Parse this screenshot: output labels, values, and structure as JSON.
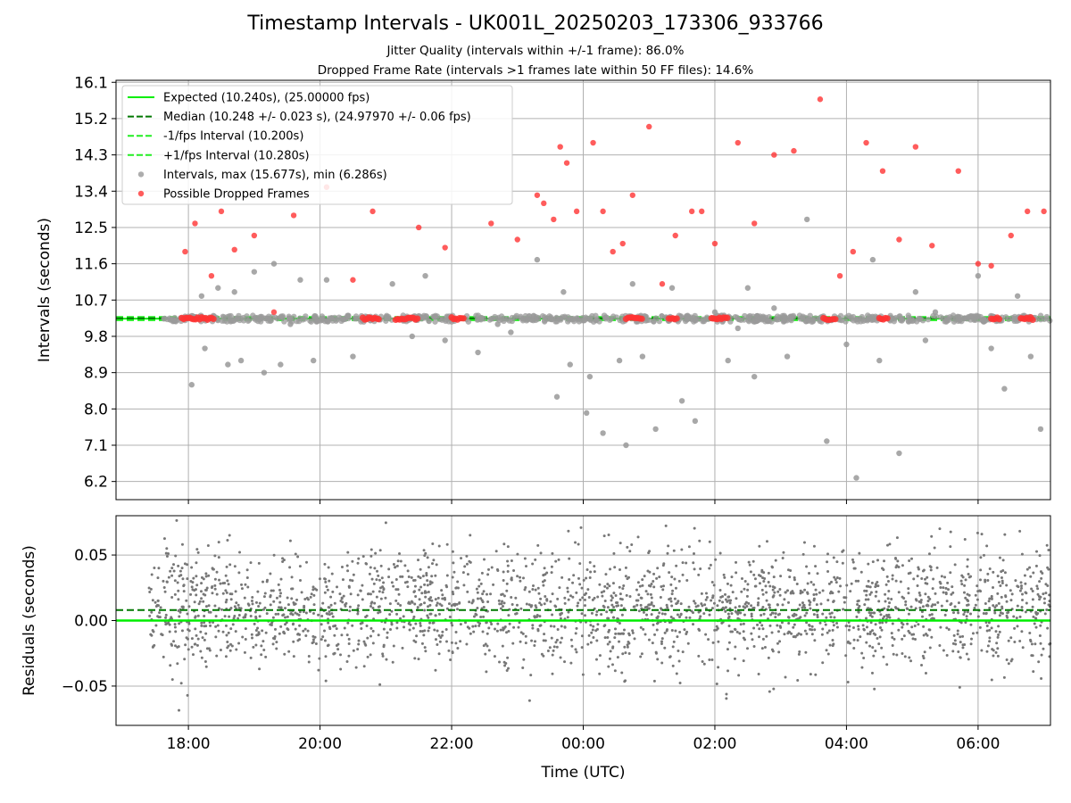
{
  "title": "Timestamp Intervals - UK001L_20250203_173306_933766",
  "subtitle1": "Jitter Quality (intervals within +/-1 frame): 86.0%",
  "subtitle2": "Dropped Frame Rate (intervals >1 frames late within 50 FF files): 14.6%",
  "colors": {
    "expected": "#00ee00",
    "median": "#007700",
    "fps_band": "#22ee22",
    "intervals": "#999999",
    "dropped": "#ff3333",
    "residuals": "#777777",
    "grid": "#b0b0b0"
  },
  "chart_data": [
    {
      "type": "scatter",
      "id": "intervals",
      "ylabel": "Intervals (seconds)",
      "ylim": [
        5.75,
        16.15
      ],
      "yticks": [
        "6.2",
        "7.1",
        "8.0",
        "8.9",
        "9.8",
        "10.7",
        "11.6",
        "12.5",
        "13.4",
        "14.3",
        "15.2",
        "16.1"
      ],
      "xlim": [
        -7.1,
        7.1
      ],
      "xticks": [
        "18:00",
        "20:00",
        "22:00",
        "00:00",
        "02:00",
        "04:00",
        "06:00"
      ],
      "grid": true,
      "legend_position": "top-left",
      "reference_lines": {
        "expected": 10.24,
        "median": 10.248,
        "minus_fps": 10.2,
        "plus_fps": 10.28
      },
      "legend": [
        "Expected (10.240s), (25.00000 fps)",
        "Median (10.248 +/- 0.023 s), (24.97970 +/- 0.06 fps)",
        "-1/fps Interval (10.200s)",
        "+1/fps Interval (10.280s)",
        "Intervals, max (15.677s), min (6.286s)",
        "Possible Dropped Frames"
      ],
      "series": [
        {
          "name": "Intervals, max (15.677s), min (6.286s)",
          "x": [
            -5.95,
            -5.8,
            -5.75,
            -5.55,
            -5.4,
            -5.3,
            -5.2,
            -5.0,
            -4.85,
            -4.7,
            -4.6,
            -4.45,
            -4.3,
            -4.1,
            -3.9,
            -3.5,
            -2.9,
            -2.6,
            -2.4,
            -2.1,
            -1.6,
            -1.3,
            -1.1,
            -0.7,
            -0.4,
            -0.3,
            -0.2,
            0.05,
            0.1,
            0.3,
            0.55,
            0.65,
            0.75,
            0.9,
            1.1,
            1.35,
            1.5,
            1.7,
            2.0,
            2.2,
            2.35,
            2.5,
            2.6,
            2.9,
            3.1,
            3.4,
            3.7,
            4.0,
            4.15,
            4.4,
            4.5,
            4.8,
            5.05,
            5.2,
            5.35,
            6.0,
            6.2,
            6.4,
            6.6,
            6.8,
            6.95
          ],
          "y": [
            8.6,
            10.8,
            9.5,
            11.0,
            9.1,
            10.9,
            9.2,
            11.4,
            8.9,
            11.6,
            9.1,
            10.1,
            11.2,
            9.2,
            11.2,
            9.3,
            11.1,
            9.8,
            11.3,
            9.7,
            9.4,
            10.1,
            9.9,
            11.7,
            8.3,
            10.9,
            9.1,
            7.9,
            8.8,
            7.4,
            9.2,
            7.1,
            11.1,
            9.3,
            7.5,
            11.0,
            8.2,
            7.7,
            10.4,
            9.2,
            10.0,
            11.0,
            8.8,
            10.5,
            9.3,
            12.7,
            7.2,
            9.6,
            6.29,
            11.7,
            9.2,
            6.9,
            10.9,
            9.7,
            10.4,
            11.3,
            9.5,
            8.5,
            10.8,
            9.3,
            7.5
          ]
        },
        {
          "name": "Possible Dropped Frames",
          "x": [
            -6.05,
            -5.9,
            -5.65,
            -5.5,
            -5.3,
            -5.0,
            -4.7,
            -4.4,
            -3.9,
            -3.5,
            -3.2,
            -2.5,
            -2.1,
            -1.4,
            -1.0,
            -0.7,
            -0.6,
            -0.45,
            -0.35,
            -0.25,
            -0.1,
            0.15,
            0.3,
            0.45,
            0.6,
            0.75,
            1.0,
            1.2,
            1.4,
            1.65,
            1.8,
            2.0,
            2.35,
            2.6,
            2.9,
            3.2,
            3.6,
            3.9,
            4.1,
            4.3,
            4.55,
            4.8,
            5.05,
            5.3,
            5.7,
            6.0,
            6.2,
            6.5,
            6.75,
            7.0
          ],
          "y": [
            11.9,
            12.6,
            11.3,
            12.9,
            11.95,
            12.3,
            10.4,
            12.8,
            13.5,
            11.2,
            12.9,
            12.5,
            12.0,
            12.6,
            12.2,
            13.3,
            13.1,
            12.7,
            14.5,
            14.1,
            12.9,
            14.6,
            12.9,
            11.9,
            12.1,
            13.3,
            15.0,
            11.1,
            12.3,
            12.9,
            12.9,
            12.1,
            14.6,
            12.6,
            14.3,
            14.4,
            15.68,
            11.3,
            11.9,
            14.6,
            13.9,
            12.2,
            14.5,
            12.05,
            13.9,
            11.6,
            11.55,
            12.3,
            12.9,
            12.9
          ]
        }
      ]
    },
    {
      "type": "scatter",
      "id": "residuals",
      "ylabel": "Residuals (seconds)",
      "xlabel": "Time (UTC)",
      "ylim": [
        -0.08,
        0.08
      ],
      "yticks": [
        "−0.05",
        "0.00",
        "0.05"
      ],
      "ytick_values": [
        -0.05,
        0.0,
        0.05
      ],
      "xlim": [
        -7.1,
        7.1
      ],
      "xticks": [
        "18:00",
        "20:00",
        "22:00",
        "00:00",
        "02:00",
        "04:00",
        "06:00"
      ],
      "xtick_values": [
        -6,
        -4,
        -2,
        0,
        2,
        4,
        6
      ],
      "grid": true,
      "reference_lines": {
        "expected": 0.0,
        "median": 0.008
      },
      "series": [
        {
          "name": "Residuals",
          "x_range": [
            -6.6,
            7.1
          ],
          "y_center": 0.008,
          "y_spread": 0.023,
          "count": 2400
        }
      ]
    }
  ]
}
